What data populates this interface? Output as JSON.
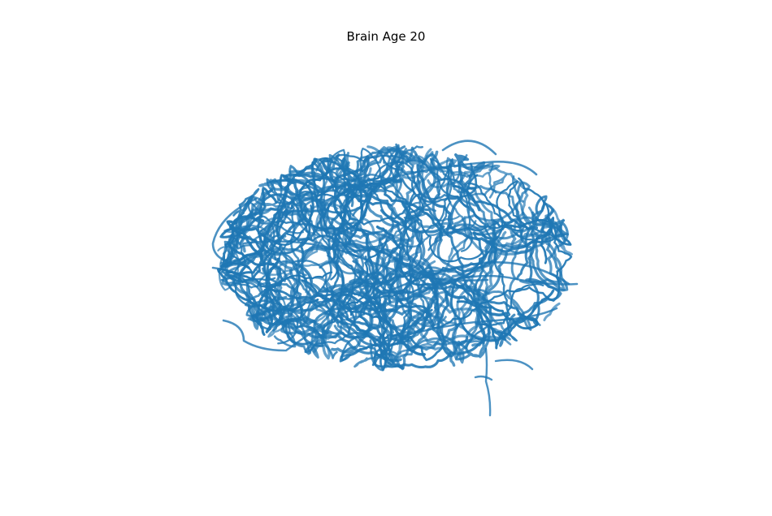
{
  "figure": {
    "title": "Brain Age 20",
    "stroke_color": "#1f77b4",
    "background_color": "#ffffff"
  }
}
